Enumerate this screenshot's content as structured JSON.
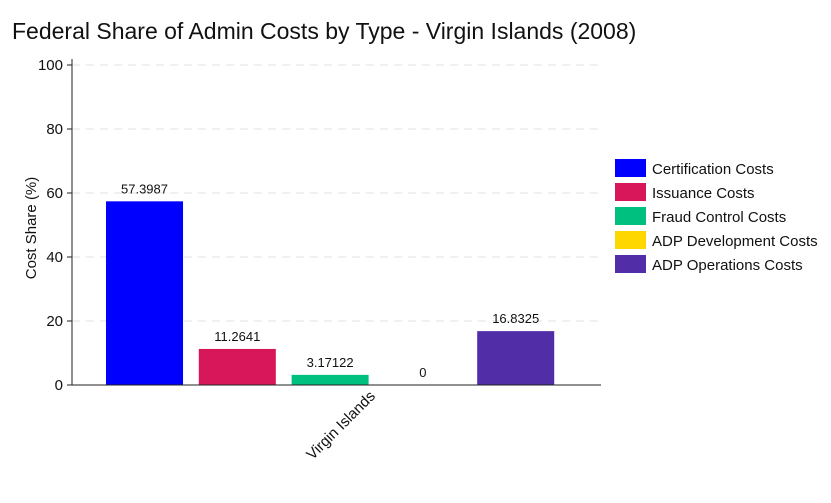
{
  "chart_data": {
    "type": "bar",
    "title": "Federal Share of Admin Costs by Type - Virgin Islands (2008)",
    "ylabel": "Cost Share (%)",
    "xlabel": "",
    "categories": [
      "Virgin Islands"
    ],
    "ylim": [
      0,
      100
    ],
    "yticks": [
      0,
      20,
      40,
      60,
      80,
      100
    ],
    "grid": true,
    "legend_position": "right",
    "series": [
      {
        "name": "Certification Costs",
        "values": [
          57.3987
        ],
        "label": "57.3987",
        "color": "#0000ff"
      },
      {
        "name": "Issuance Costs",
        "values": [
          11.2641
        ],
        "label": "11.2641",
        "color": "#d7175a"
      },
      {
        "name": "Fraud Control Costs",
        "values": [
          3.17122
        ],
        "label": "3.17122",
        "color": "#00c07f"
      },
      {
        "name": "ADP Development Costs",
        "values": [
          0
        ],
        "label": "0",
        "color": "#ffd700"
      },
      {
        "name": "ADP Operations Costs",
        "values": [
          16.8325
        ],
        "label": "16.8325",
        "color": "#512da8"
      }
    ]
  }
}
